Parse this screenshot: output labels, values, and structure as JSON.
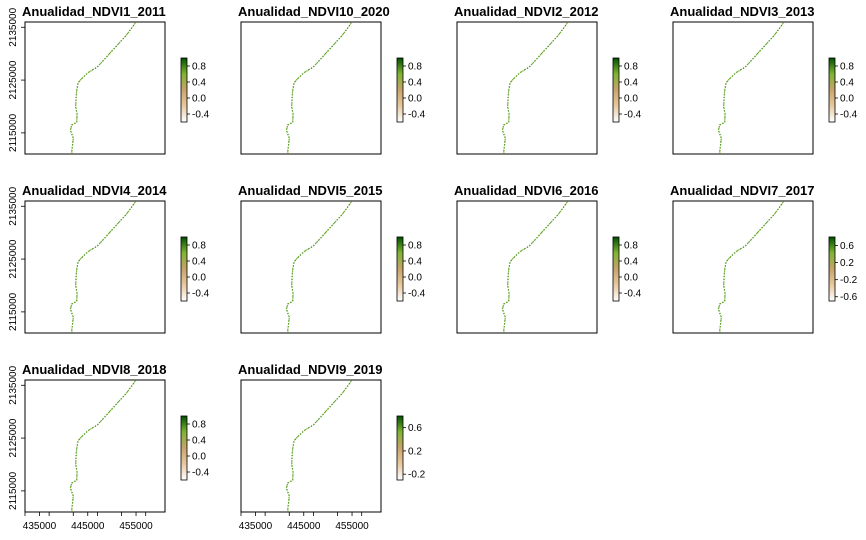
{
  "chart_data": {
    "type": "raster-map-grid",
    "x_ticks": [
      435000,
      445000,
      455000
    ],
    "y_ticks": [
      2115000,
      2125000,
      2135000
    ],
    "xlim": [
      432000,
      461000
    ],
    "ylim": [
      2111000,
      2136000
    ],
    "coastline": [
      [
        441800,
        2109500
      ],
      [
        441700,
        2111500
      ],
      [
        442000,
        2114000
      ],
      [
        441400,
        2115500
      ],
      [
        441700,
        2116500
      ],
      [
        442700,
        2117000
      ],
      [
        442800,
        2118500
      ],
      [
        442500,
        2120000
      ],
      [
        442600,
        2122000
      ],
      [
        442700,
        2123000
      ],
      [
        443000,
        2124500
      ],
      [
        444000,
        2125500
      ],
      [
        445200,
        2126500
      ],
      [
        447000,
        2127500
      ],
      [
        448500,
        2129000
      ],
      [
        450000,
        2130500
      ],
      [
        451500,
        2132000
      ],
      [
        453000,
        2133500
      ],
      [
        454200,
        2135000
      ],
      [
        455000,
        2136000
      ]
    ],
    "colormap": {
      "low": "#ffffff",
      "mid_low": "#e8c9a0",
      "mid": "#c8a36b",
      "mid_high": "#7fb432",
      "high": "#005000",
      "coast_color": "#6fae2a"
    },
    "panels": [
      {
        "title": "Anualidad_NDVI1_2011",
        "legend_ticks": [
          "0.8",
          "0.4",
          "0.0",
          "-0.4"
        ],
        "legend_range": [
          -0.6,
          1.0
        ]
      },
      {
        "title": "Anualidad_NDVI10_2020",
        "legend_ticks": [
          "0.8",
          "0.4",
          "0.0",
          "-0.4"
        ],
        "legend_range": [
          -0.6,
          1.0
        ]
      },
      {
        "title": "Anualidad_NDVI2_2012",
        "legend_ticks": [
          "0.8",
          "0.4",
          "0.0",
          "-0.4"
        ],
        "legend_range": [
          -0.6,
          1.0
        ]
      },
      {
        "title": "Anualidad_NDVI3_2013",
        "legend_ticks": [
          "0.8",
          "0.4",
          "0.0",
          "-0.4"
        ],
        "legend_range": [
          -0.6,
          1.0
        ]
      },
      {
        "title": "Anualidad_NDVI4_2014",
        "legend_ticks": [
          "0.8",
          "0.4",
          "0.0",
          "-0.4"
        ],
        "legend_range": [
          -0.6,
          1.0
        ]
      },
      {
        "title": "Anualidad_NDVI5_2015",
        "legend_ticks": [
          "0.8",
          "0.4",
          "0.0",
          "-0.4"
        ],
        "legend_range": [
          -0.6,
          1.0
        ]
      },
      {
        "title": "Anualidad_NDVI6_2016",
        "legend_ticks": [
          "0.8",
          "0.4",
          "0.0",
          "-0.4"
        ],
        "legend_range": [
          -0.6,
          1.0
        ]
      },
      {
        "title": "Anualidad_NDVI7_2017",
        "legend_ticks": [
          "0.6",
          "0.2",
          "-0.2",
          "-0.6"
        ],
        "legend_range": [
          -0.7,
          0.8
        ]
      },
      {
        "title": "Anualidad_NDVI8_2018",
        "legend_ticks": [
          "0.8",
          "0.4",
          "0.0",
          "-0.4"
        ],
        "legend_range": [
          -0.6,
          1.0
        ]
      },
      {
        "title": "Anualidad_NDVI9_2019",
        "legend_ticks": [
          "0.6",
          "0.2",
          "-0.2"
        ],
        "legend_range": [
          -0.3,
          0.8
        ]
      }
    ]
  }
}
